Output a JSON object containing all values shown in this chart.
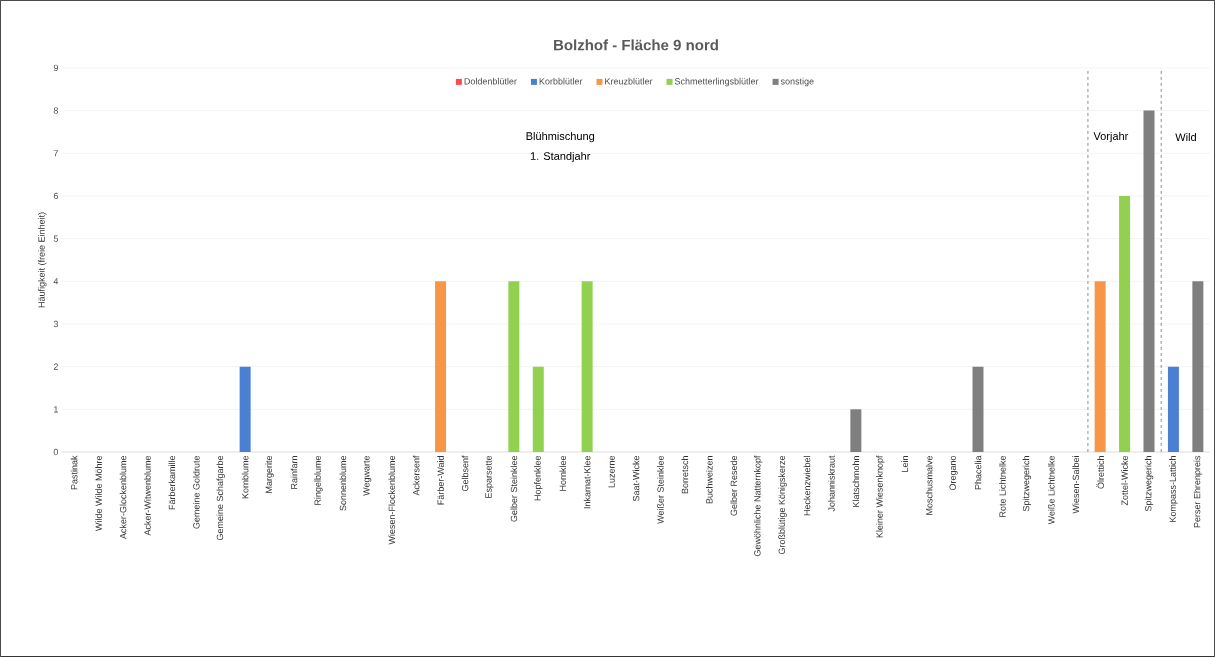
{
  "chart_data": {
    "type": "bar",
    "title": "Bolzhof - Fläche 9  nord",
    "ylabel": "Häufigkeit (freie Einheit)",
    "categories": [
      "Pastinak",
      "Wilde Wilde Möhre",
      "Acker-Glockenblume",
      "Acker-Witwenblume",
      "Färberkamille",
      "Gemeine Goldrute",
      "Gemeine Schafgarbe",
      "Kornblume",
      "Margerite",
      "Rainfarn",
      "Ringelblume",
      "Sonnenblume",
      "Wegwarte",
      "Wiesen-Flockenblume",
      "Ackersenf",
      "Färber-Waid",
      "Gelbsenf",
      "Esparsette",
      "Gelber Steinklee",
      "Hopfenklee",
      "Hornklee",
      "Inkarnat-Klee",
      "Luzerne",
      "Saat-Wicke",
      "Weißer Steinklee",
      "Borretsch",
      "Buchweizen",
      "Gelber Resede",
      "Gewöhnliche Natternkopf",
      "Großblütige Königskerze",
      "Heckenzwiebel",
      "Johanniskraut",
      "Klatschmohn",
      "Kleiner Wiesenknopf",
      "Lein",
      "Moschusmalve",
      "Oregano",
      "Phacelia",
      "Rote Lichtnelke",
      "Spitzwegerich",
      "Weiße Lichtnelke",
      "Wiesen-Salbei",
      "Ölrettich",
      "Zottel-Wicke",
      "Spitzwegerich",
      "Kompass-Lattich",
      "Perser Ehrenpreis"
    ],
    "series": [
      {
        "name": "Doldenblütler",
        "color": "#ff4b4b",
        "values": [
          null,
          null,
          null,
          null,
          null,
          null,
          null,
          null,
          null,
          null,
          null,
          null,
          null,
          null,
          null,
          null,
          null,
          null,
          null,
          null,
          null,
          null,
          null,
          null,
          null,
          null,
          null,
          null,
          null,
          null,
          null,
          null,
          null,
          null,
          null,
          null,
          null,
          null,
          null,
          null,
          null,
          null,
          null,
          null,
          null,
          null,
          null
        ]
      },
      {
        "name": "Korbblütler",
        "color": "#4a7fd4",
        "values": [
          null,
          null,
          null,
          null,
          null,
          null,
          null,
          2,
          null,
          null,
          null,
          null,
          null,
          null,
          null,
          null,
          null,
          null,
          null,
          null,
          null,
          null,
          null,
          null,
          null,
          null,
          null,
          null,
          null,
          null,
          null,
          null,
          null,
          null,
          null,
          null,
          null,
          null,
          null,
          null,
          null,
          null,
          null,
          null,
          null,
          2,
          null
        ]
      },
      {
        "name": "Kreuzblütler",
        "color": "#f79646",
        "values": [
          null,
          null,
          null,
          null,
          null,
          null,
          null,
          null,
          null,
          null,
          null,
          null,
          null,
          null,
          null,
          4,
          null,
          null,
          null,
          null,
          null,
          null,
          null,
          null,
          null,
          null,
          null,
          null,
          null,
          null,
          null,
          null,
          null,
          null,
          null,
          null,
          null,
          null,
          null,
          null,
          null,
          null,
          4,
          null,
          null,
          null,
          null
        ]
      },
      {
        "name": "Schmetterlingsblütler",
        "color": "#92d050",
        "values": [
          null,
          null,
          null,
          null,
          null,
          null,
          null,
          null,
          null,
          null,
          null,
          null,
          null,
          null,
          null,
          null,
          null,
          null,
          4,
          2,
          null,
          4,
          null,
          null,
          null,
          null,
          null,
          null,
          null,
          null,
          null,
          null,
          null,
          null,
          null,
          null,
          null,
          null,
          null,
          null,
          null,
          null,
          null,
          6,
          null,
          null,
          null
        ]
      },
      {
        "name": "sonstige",
        "color": "#7f7f7f",
        "values": [
          null,
          null,
          null,
          null,
          null,
          null,
          null,
          null,
          null,
          null,
          null,
          null,
          null,
          null,
          null,
          null,
          null,
          null,
          null,
          null,
          null,
          null,
          null,
          null,
          null,
          null,
          null,
          null,
          null,
          null,
          null,
          null,
          1,
          null,
          null,
          null,
          null,
          2,
          null,
          null,
          null,
          null,
          null,
          null,
          8,
          null,
          4
        ]
      }
    ],
    "ylim": [
      0,
      9
    ],
    "yticks": [
      0,
      1,
      2,
      3,
      4,
      5,
      6,
      7,
      8,
      9
    ],
    "grid": "y",
    "legend": "top",
    "annotations": [
      "Blühmischung",
      "1. Standjahr",
      "Vorjahr",
      "Wild"
    ]
  }
}
